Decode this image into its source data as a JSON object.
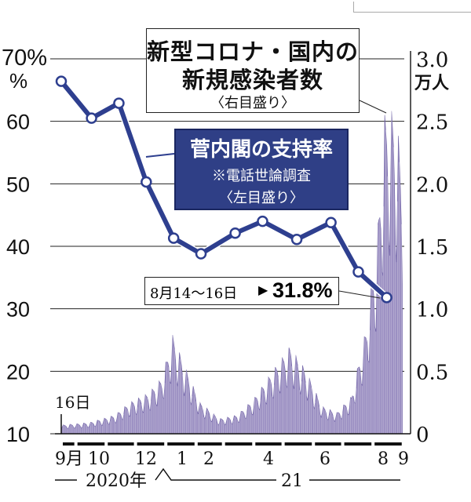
{
  "chart_data": {
    "type": "line+bar",
    "left_axis": {
      "unit_top": "70%",
      "ticks": [
        "70",
        "60",
        "50",
        "40",
        "30",
        "20",
        "10"
      ],
      "ylim": [
        10,
        70
      ]
    },
    "right_axis": {
      "ticks": [
        "3.0",
        "2.5",
        "2.0",
        "1.5",
        "1.0",
        "0.5",
        "0"
      ],
      "unit": "万人",
      "ylim": [
        0,
        3.0
      ]
    },
    "x_ticks": [
      "9月",
      "10",
      "12",
      "1",
      "2",
      "4",
      "6",
      "8",
      "9"
    ],
    "year_labels": [
      "2020年",
      "21"
    ],
    "start_label": "16日",
    "approval_series": {
      "title": "菅内閣の支持率",
      "subtitle": "※電話世論調査",
      "scale_note": "〈左目盛り〉",
      "values": [
        {
          "date": "2020-09-16",
          "value": 66.4
        },
        {
          "date": "2020-10-17",
          "value": 60.5
        },
        {
          "date": "2020-11-14",
          "value": 62.9
        },
        {
          "date": "2020-12-12",
          "value": 50.3
        },
        {
          "date": "2021-01-09",
          "value": 41.3
        },
        {
          "date": "2021-02-06",
          "value": 38.8
        },
        {
          "date": "2021-03-13",
          "value": 42.1
        },
        {
          "date": "2021-04-10",
          "value": 44.0
        },
        {
          "date": "2021-05-15",
          "value": 41.1
        },
        {
          "date": "2021-06-19",
          "value": 43.8
        },
        {
          "date": "2021-07-17",
          "value": 35.9
        },
        {
          "date": "2021-08-15",
          "value": 31.8
        }
      ]
    },
    "infections_series": {
      "title_line1": "新型コロナ・国内の",
      "title_line2": "新規感染者数",
      "scale_note": "〈右目盛り〉",
      "weekly_peaks": [
        {
          "date": "2020-09-16",
          "value": 0.07
        },
        {
          "date": "2020-10-15",
          "value": 0.09
        },
        {
          "date": "2020-11-10",
          "value": 0.15
        },
        {
          "date": "2020-11-25",
          "value": 0.25
        },
        {
          "date": "2020-12-15",
          "value": 0.33
        },
        {
          "date": "2020-12-28",
          "value": 0.45
        },
        {
          "date": "2021-01-08",
          "value": 0.79
        },
        {
          "date": "2021-01-20",
          "value": 0.55
        },
        {
          "date": "2021-02-05",
          "value": 0.25
        },
        {
          "date": "2021-02-25",
          "value": 0.12
        },
        {
          "date": "2021-03-15",
          "value": 0.15
        },
        {
          "date": "2021-04-01",
          "value": 0.28
        },
        {
          "date": "2021-04-20",
          "value": 0.5
        },
        {
          "date": "2021-05-08",
          "value": 0.7
        },
        {
          "date": "2021-05-25",
          "value": 0.5
        },
        {
          "date": "2021-06-10",
          "value": 0.22
        },
        {
          "date": "2021-06-25",
          "value": 0.17
        },
        {
          "date": "2021-07-10",
          "value": 0.3
        },
        {
          "date": "2021-07-25",
          "value": 0.85
        },
        {
          "date": "2021-08-05",
          "value": 1.55
        },
        {
          "date": "2021-08-13",
          "value": 2.55
        },
        {
          "date": "2021-08-19",
          "value": 2.6
        },
        {
          "date": "2021-08-26",
          "value": 2.48
        },
        {
          "date": "2021-08-31",
          "value": 2.0
        }
      ]
    },
    "latest": {
      "date": "8月14～16日",
      "value": "31.8%"
    }
  },
  "colors": {
    "approval_line": "#2e3f8f",
    "infection_fill": "#9b8fc2",
    "infection_stroke": "#6f62a6",
    "grid": "#222222"
  }
}
